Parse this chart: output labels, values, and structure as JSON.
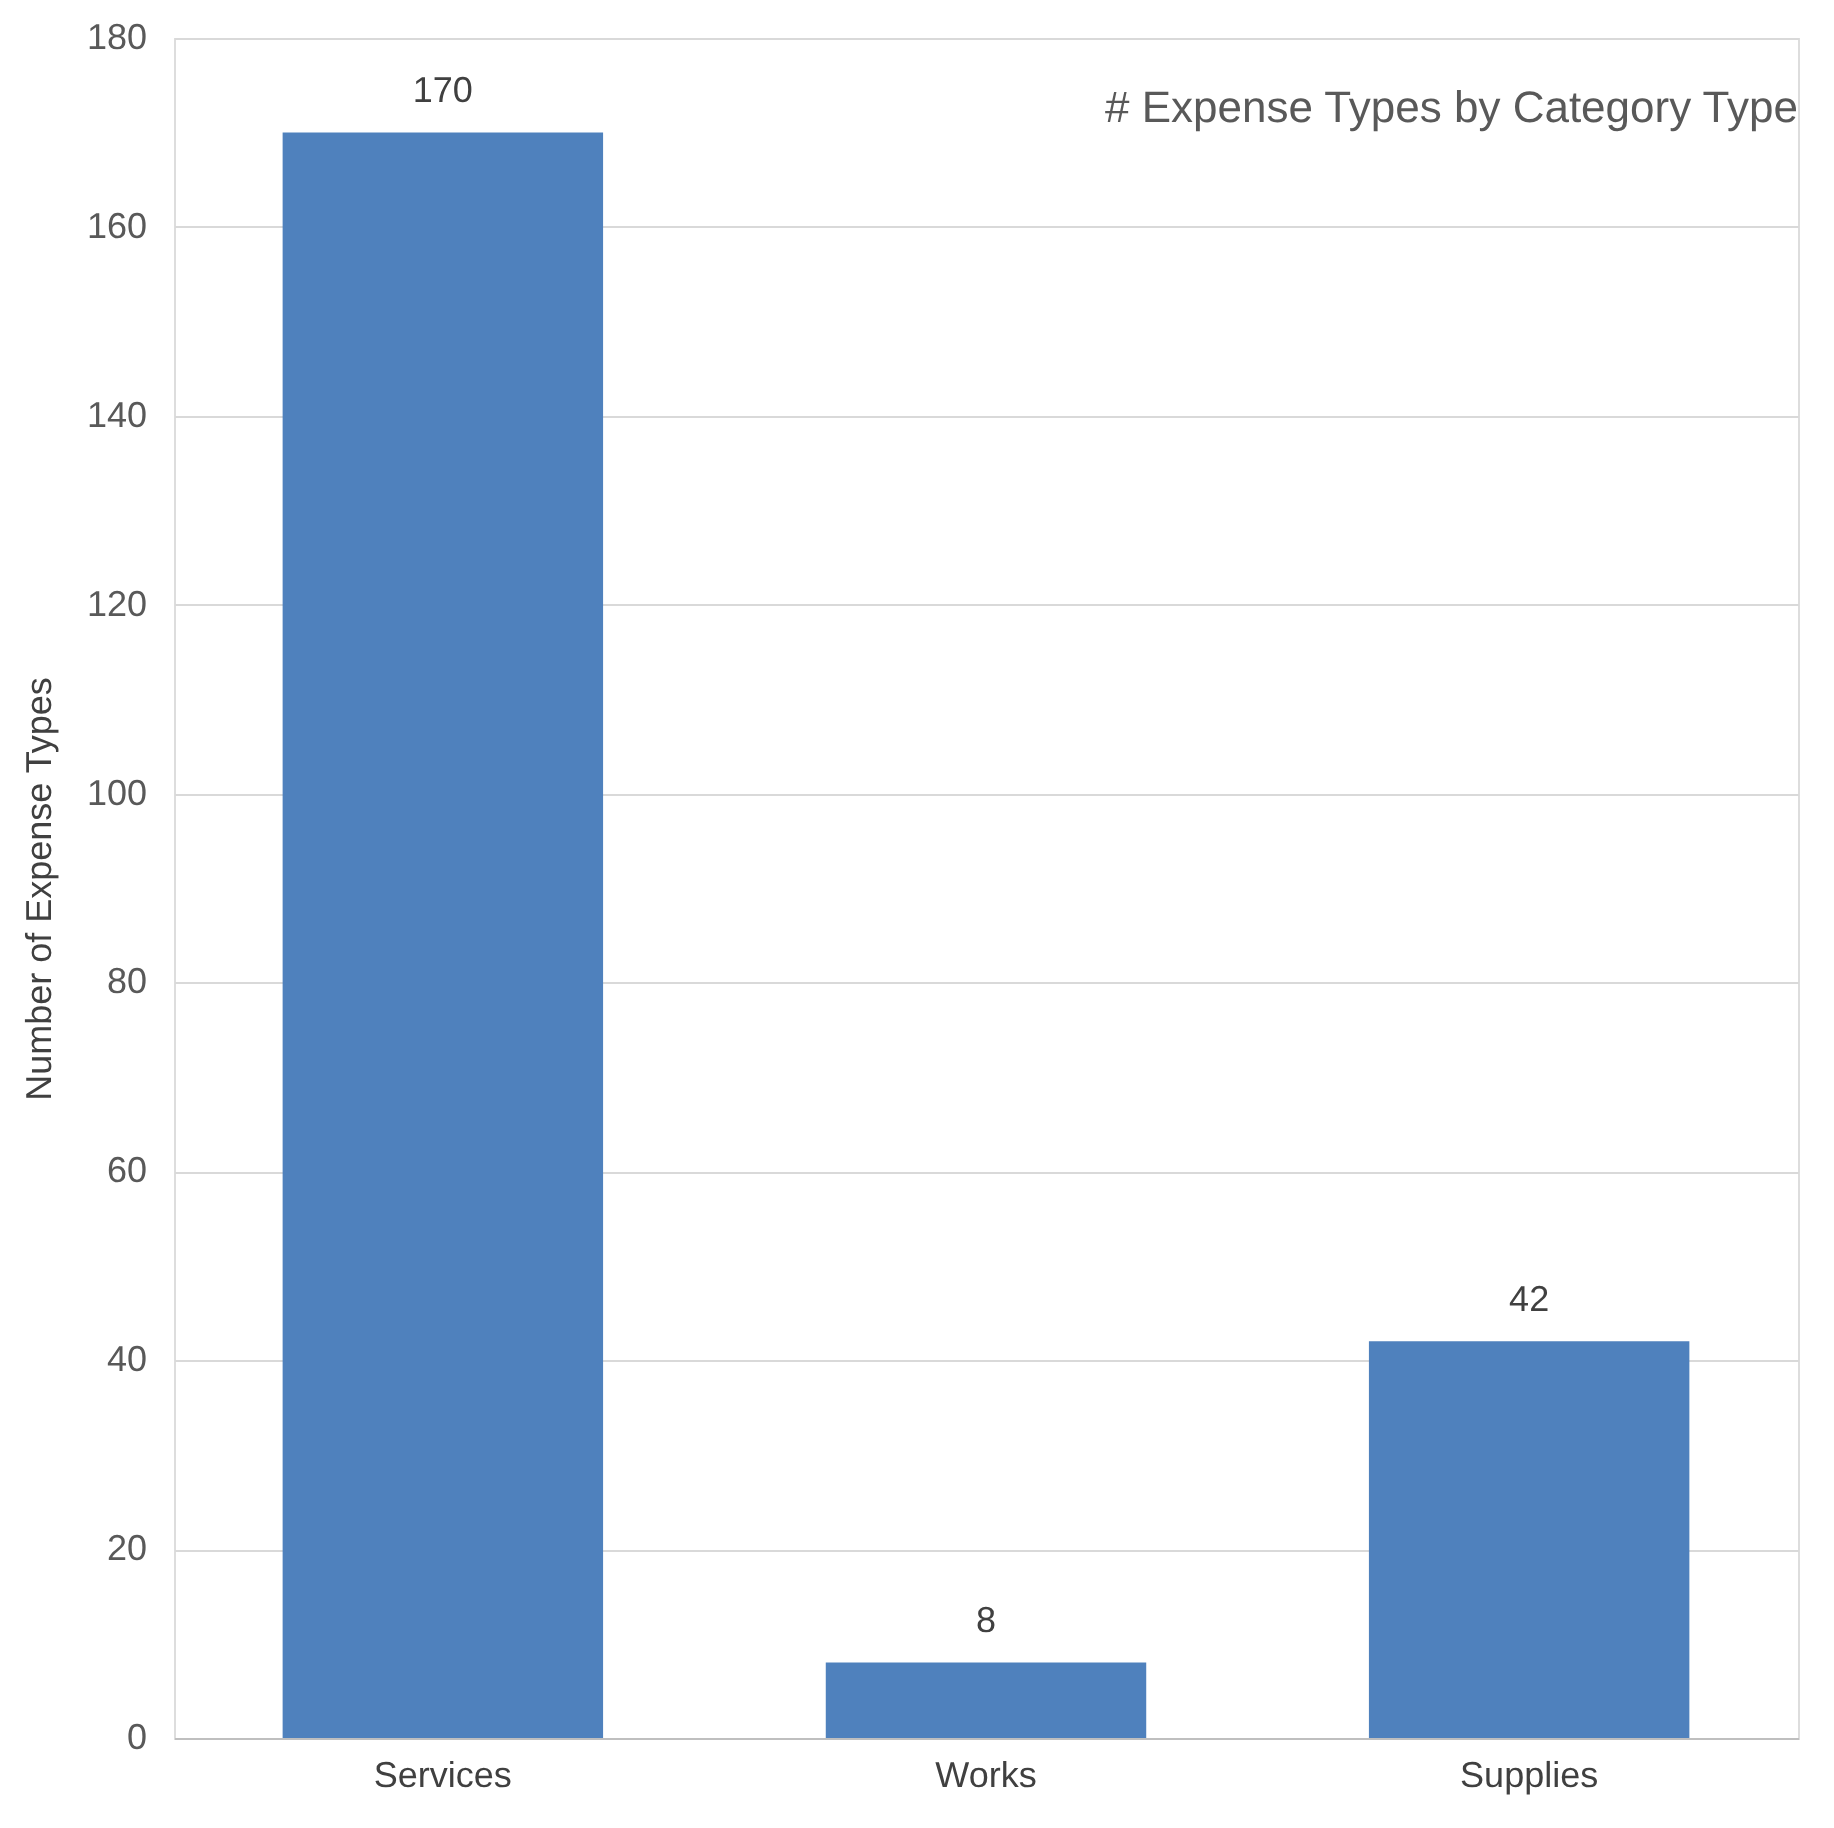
{
  "chart_data": {
    "type": "bar",
    "title": "# Expense Types by Category Type",
    "ylabel": "Number of Expense Types",
    "categories": [
      "Services",
      "Works",
      "Supplies"
    ],
    "values": [
      170,
      8,
      42
    ],
    "color": "#4f81bd",
    "ylim": [
      0,
      180
    ],
    "yticks": [
      0,
      20,
      40,
      60,
      80,
      100,
      120,
      140,
      160,
      180
    ],
    "grid": "y",
    "data_labels": true
  }
}
